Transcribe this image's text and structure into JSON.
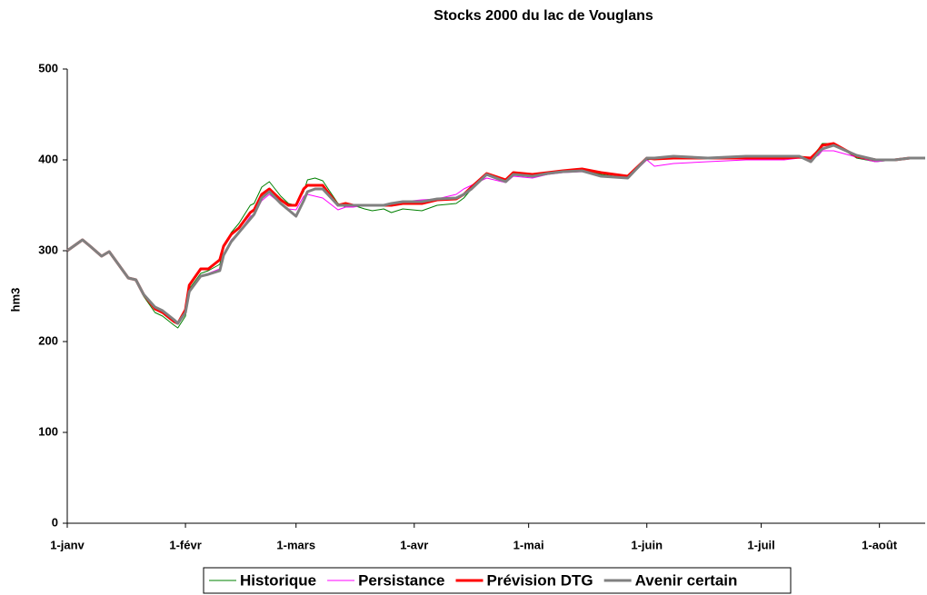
{
  "chart_data": {
    "type": "line",
    "title": "Stocks 2000 du lac de Vouglans",
    "y_label": "hm3",
    "x": [
      0,
      4,
      6,
      9,
      11,
      16,
      18,
      20,
      23,
      25,
      28,
      29,
      31,
      32,
      35,
      37,
      40,
      41,
      43,
      45,
      48,
      49,
      51,
      53,
      56,
      58,
      60,
      62,
      63,
      65,
      67,
      71,
      73,
      75,
      78,
      80,
      83,
      85,
      88,
      93,
      97,
      102,
      104,
      106,
      110,
      115,
      117,
      122,
      126,
      130,
      135,
      140,
      147,
      152,
      154,
      159,
      168,
      178,
      188,
      192,
      195,
      197,
      198,
      201,
      207,
      212,
      217,
      221,
      225
    ],
    "series": [
      {
        "name": "Historique",
        "color": "#008000",
        "width": 1,
        "values": [
          300,
          312,
          305,
          294,
          299,
          270,
          268,
          250,
          232,
          228,
          218,
          215,
          228,
          258,
          275,
          278,
          285,
          303,
          320,
          330,
          350,
          352,
          370,
          376,
          360,
          352,
          350,
          365,
          378,
          380,
          377,
          352,
          348,
          350,
          346,
          344,
          346,
          342,
          346,
          344,
          350,
          352,
          358,
          368,
          383,
          375,
          385,
          382,
          384,
          388,
          390,
          384,
          380,
          400,
          401,
          402,
          402,
          402,
          402,
          404,
          402,
          412,
          418,
          418,
          402,
          398,
          400,
          402,
          402
        ]
      },
      {
        "name": "Persistance",
        "color": "#ff00ff",
        "width": 1,
        "values": [
          300,
          312,
          305,
          294,
          299,
          270,
          268,
          252,
          236,
          232,
          222,
          220,
          232,
          255,
          272,
          275,
          280,
          296,
          312,
          320,
          338,
          340,
          355,
          362,
          352,
          346,
          345,
          360,
          362,
          360,
          358,
          345,
          348,
          348,
          350,
          350,
          350,
          352,
          354,
          356,
          357,
          362,
          368,
          372,
          380,
          375,
          382,
          380,
          384,
          386,
          387,
          382,
          380,
          400,
          393,
          396,
          398,
          400,
          400,
          402,
          400,
          405,
          410,
          410,
          403,
          398,
          400,
          402,
          402
        ]
      },
      {
        "name": "Prévision DTG",
        "color": "#ff0000",
        "width": 3,
        "values": [
          300,
          312,
          305,
          294,
          299,
          270,
          268,
          252,
          236,
          232,
          222,
          220,
          235,
          262,
          280,
          280,
          290,
          305,
          318,
          325,
          342,
          345,
          362,
          368,
          356,
          350,
          350,
          368,
          372,
          372,
          372,
          350,
          352,
          350,
          350,
          350,
          350,
          350,
          352,
          352,
          356,
          357,
          362,
          370,
          385,
          378,
          386,
          384,
          386,
          388,
          390,
          386,
          382,
          402,
          401,
          402,
          402,
          402,
          402,
          403,
          402,
          410,
          416,
          418,
          404,
          400,
          400,
          402,
          402
        ]
      },
      {
        "name": "Avenir certain",
        "color": "#808080",
        "width": 3,
        "values": [
          300,
          312,
          305,
          294,
          299,
          270,
          268,
          252,
          238,
          234,
          224,
          220,
          232,
          255,
          272,
          274,
          278,
          295,
          310,
          320,
          335,
          340,
          358,
          365,
          352,
          345,
          338,
          355,
          365,
          368,
          368,
          350,
          350,
          350,
          350,
          350,
          350,
          352,
          354,
          354,
          357,
          358,
          362,
          368,
          384,
          376,
          384,
          382,
          385,
          387,
          388,
          382,
          380,
          402,
          402,
          404,
          402,
          404,
          404,
          404,
          398,
          408,
          412,
          416,
          405,
          400,
          400,
          402,
          402
        ]
      }
    ],
    "xlim": [
      0,
      225
    ],
    "xticks": [
      {
        "value": 0,
        "label": "1-janv"
      },
      {
        "value": 31,
        "label": "1-févr"
      },
      {
        "value": 60,
        "label": "1-mars"
      },
      {
        "value": 91,
        "label": "1-avr"
      },
      {
        "value": 121,
        "label": "1-mai"
      },
      {
        "value": 152,
        "label": "1-juin"
      },
      {
        "value": 182,
        "label": "1-juil"
      },
      {
        "value": 213,
        "label": "1-août"
      }
    ],
    "ylim": [
      0,
      500
    ],
    "yticks": [
      0,
      100,
      200,
      300,
      400,
      500
    ],
    "grid": false,
    "legend": "bottom"
  }
}
